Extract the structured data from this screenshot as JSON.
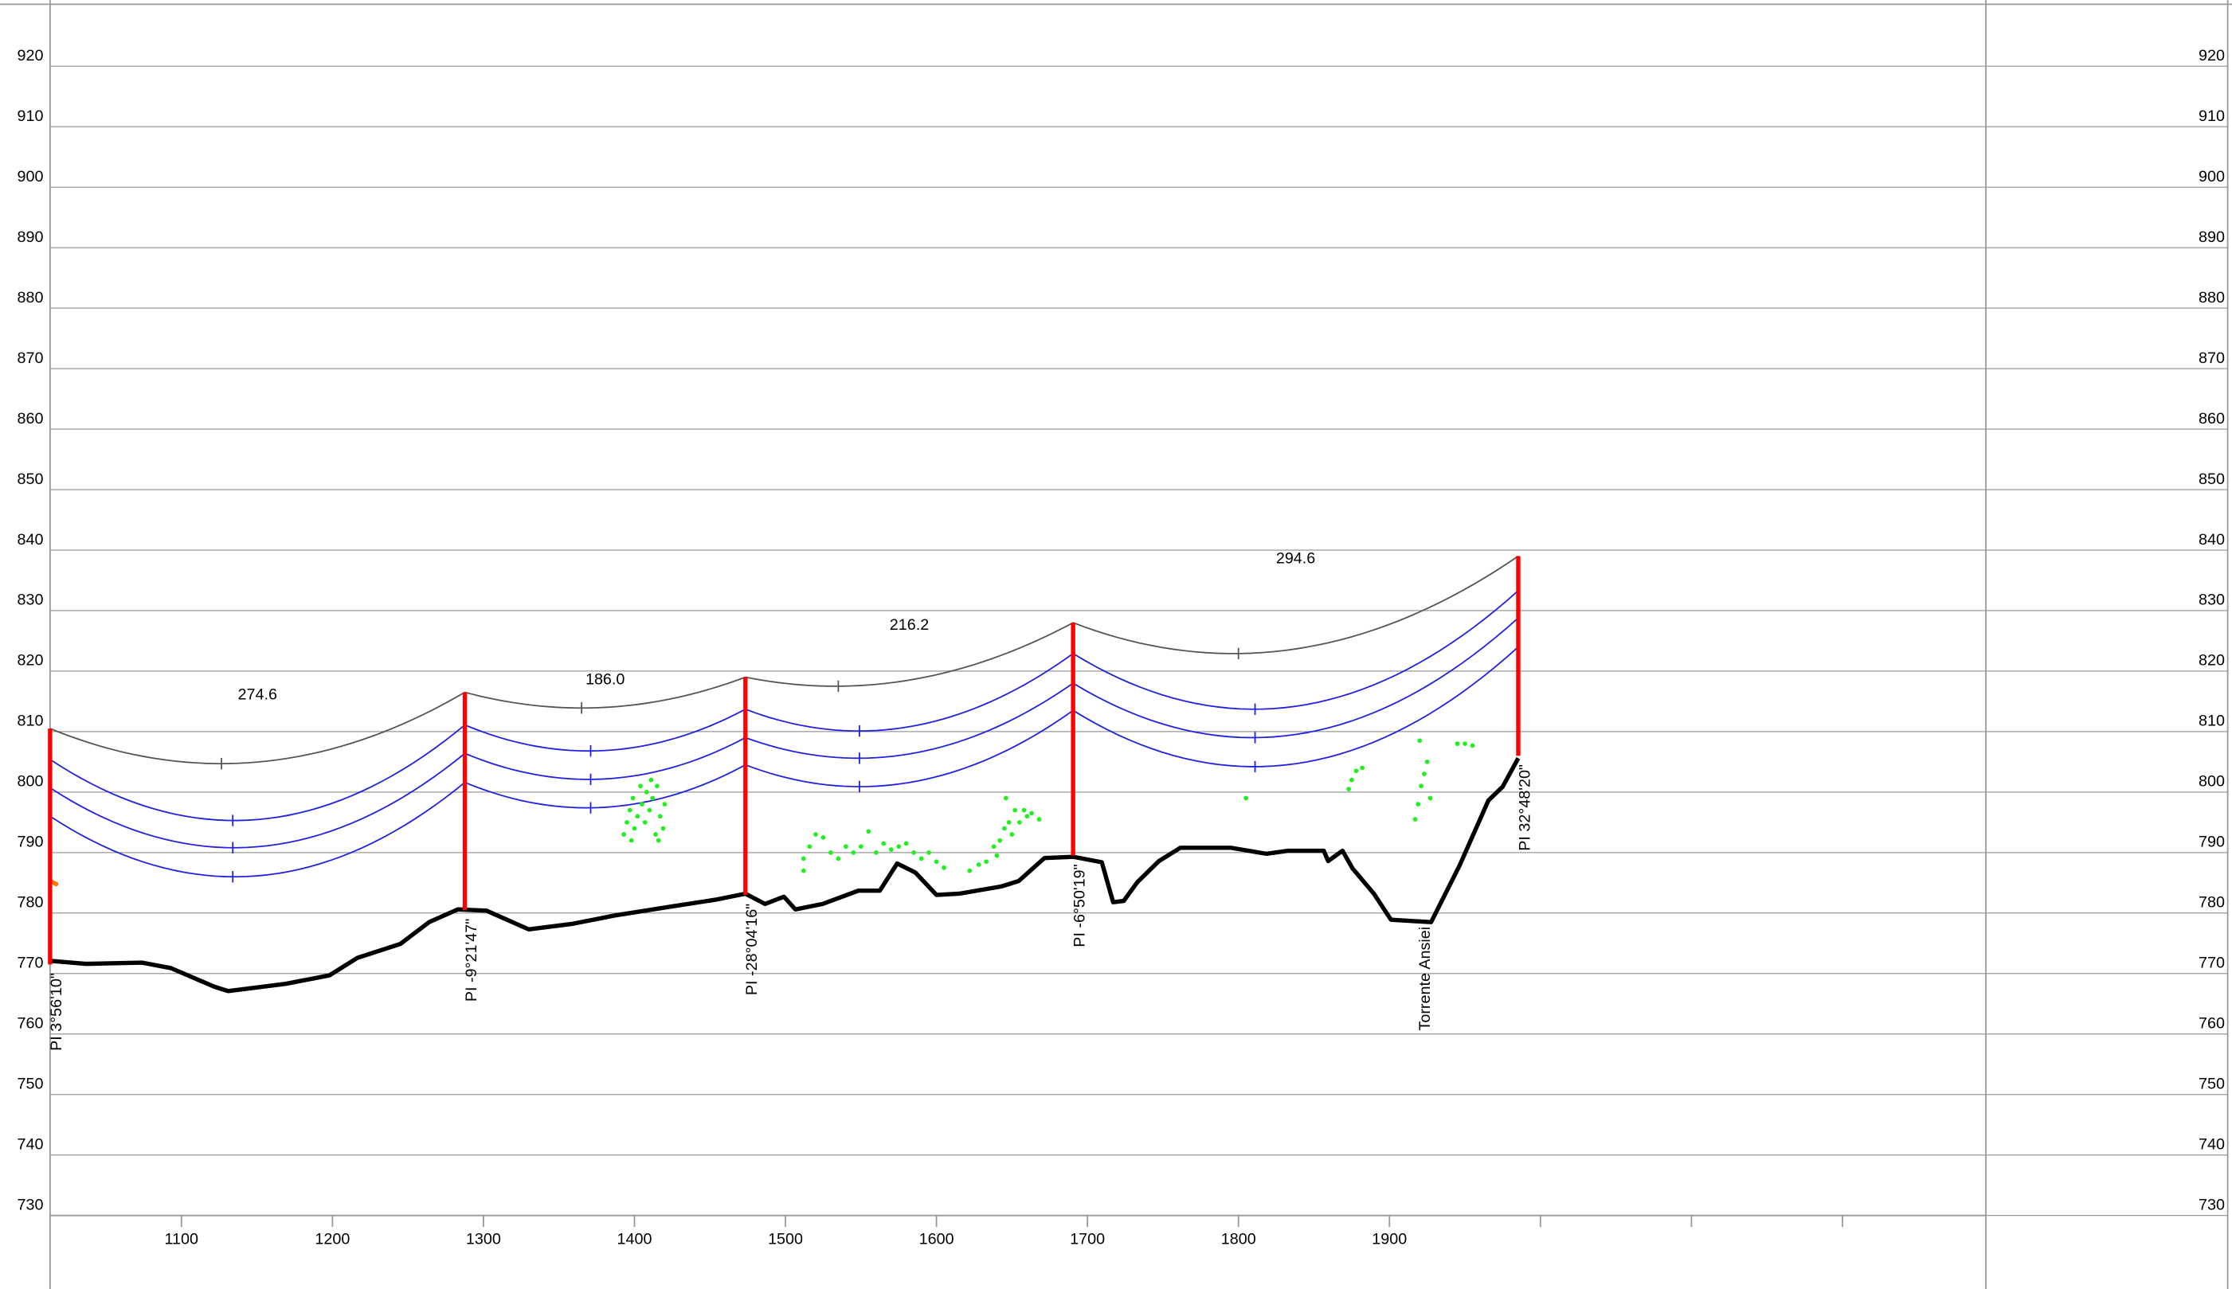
{
  "chart_data": {
    "type": "profile",
    "xlim": [
      1013,
      2295
    ],
    "ylim": [
      730,
      930
    ],
    "xticks": [
      1100,
      1200,
      1300,
      1400,
      1500,
      1600,
      1700,
      1800,
      1900
    ],
    "xminor": [
      2000,
      2100,
      2200
    ],
    "yticks": [
      730,
      740,
      750,
      760,
      770,
      780,
      790,
      800,
      810,
      820,
      830,
      840,
      850,
      860,
      870,
      880,
      890,
      900,
      910,
      920
    ],
    "grid": true,
    "terrain": {
      "color": "#000000",
      "x": [
        1013,
        1036.5,
        1074,
        1093,
        1122,
        1131,
        1169,
        1198,
        1216.6,
        1245,
        1264,
        1283,
        1302,
        1330,
        1358.5,
        1387,
        1425,
        1453.5,
        1473.5,
        1486.5,
        1499,
        1506.6,
        1524.6,
        1548.3,
        1562.5,
        1574,
        1586,
        1600,
        1615,
        1643,
        1654.5,
        1671.6,
        1690.5,
        1709.5,
        1717,
        1724,
        1733,
        1747.4,
        1761.6,
        1794.8,
        1818.5,
        1832.8,
        1856.5,
        1859.4,
        1868.9,
        1875.5,
        1889.7,
        1901,
        1927.6,
        1946.5,
        1965.5,
        1975,
        1985.3
      ],
      "values": [
        772.1,
        771.6,
        771.8,
        770.9,
        767.8,
        767.1,
        768.3,
        769.7,
        772.6,
        774.9,
        778.5,
        780.6,
        780.4,
        777.3,
        778.2,
        779.6,
        781.1,
        782.2,
        783.2,
        781.5,
        782.7,
        780.6,
        781.5,
        783.7,
        783.7,
        788.2,
        786.7,
        783,
        783.2,
        784.4,
        785.3,
        789.1,
        789.3,
        788.4,
        781.8,
        782,
        785.1,
        788.6,
        790.8,
        790.8,
        789.8,
        790.3,
        790.3,
        788.6,
        790.3,
        787.4,
        783.2,
        778.9,
        778.5,
        787.9,
        798.6,
        800.9,
        805.6
      ]
    },
    "poles": {
      "color": "#ff0000",
      "x": [
        1013,
        1287.7,
        1473.5,
        1690.5,
        1985.3
      ],
      "top": [
        810.5,
        816.5,
        819,
        828,
        839
      ],
      "bottom": [
        771.5,
        780.5,
        783,
        789.5,
        806
      ],
      "labels": [
        "PI 3°56'10\"",
        "PI -9°21'47\"",
        "PI -28°04'16\"",
        "PI -6°50'19\"",
        "PI 32°48'20\""
      ]
    },
    "wires": [
      {
        "color": "#555555",
        "values": [
          810.5,
          816.5,
          819,
          828,
          839
        ],
        "low_x": [
          1126.5,
          1365,
          1535,
          1800
        ],
        "low_y": [
          804.7,
          813.9,
          817.5,
          822.9
        ]
      },
      {
        "color": "#2020e0",
        "values": [
          805.4,
          811.1,
          813.7,
          822.9,
          833.3
        ],
        "low_x": [
          1134,
          1371,
          1549,
          1811
        ],
        "low_y": [
          795.3,
          806.8,
          810.1,
          813.7
        ]
      },
      {
        "color": "#2020e0",
        "values": [
          800.7,
          806.4,
          809,
          818,
          828.8
        ],
        "low_x": [
          1134,
          1371,
          1549,
          1811
        ],
        "low_y": [
          790.8,
          802.1,
          805.6,
          809
        ]
      },
      {
        "color": "#2020e0",
        "values": [
          796,
          801.6,
          804.5,
          813.5,
          824
        ],
        "low_x": [
          1134,
          1371,
          1549,
          1811
        ],
        "low_y": [
          786,
          797.4,
          800.9,
          804.2
        ]
      }
    ],
    "spans": [
      {
        "value": 274.6,
        "label": "274.6"
      },
      {
        "value": 186,
        "label": "186.0"
      },
      {
        "value": 216.2,
        "label": "216.2"
      },
      {
        "value": 294.6,
        "label": "294.6"
      }
    ],
    "annotations": [
      {
        "x": 1922,
        "text": "Torrente Ansiei"
      }
    ],
    "points": [
      {
        "color": "#22ee22",
        "x": [
          1393,
          1395,
          1397,
          1399,
          1400,
          1402,
          1404,
          1405,
          1407,
          1408,
          1410,
          1412,
          1414,
          1415,
          1417,
          1419,
          1420,
          1398,
          1411,
          1416,
          1512,
          1516,
          1520,
          1525,
          1530,
          1535,
          1540,
          1545,
          1550,
          1555,
          1560,
          1565,
          1570,
          1575,
          1580,
          1585,
          1590,
          1595,
          1600,
          1605,
          1512,
          1622,
          1628,
          1633,
          1638,
          1642,
          1645,
          1648,
          1650,
          1652,
          1655,
          1658,
          1660,
          1663,
          1668,
          1646,
          1640,
          1805,
          1873,
          1875,
          1878,
          1882,
          1917,
          1919,
          1921,
          1923,
          1925,
          1927,
          1920,
          1945,
          1950,
          1955
        ],
        "values": [
          793,
          795,
          797,
          799,
          794,
          796,
          801,
          798,
          795,
          800,
          797,
          799,
          793,
          801,
          796,
          794,
          798,
          792,
          802,
          792,
          789,
          791,
          793,
          792.5,
          790,
          789,
          791,
          790,
          791,
          793.5,
          790,
          791.5,
          790.5,
          791,
          791.5,
          790,
          789,
          790,
          788.5,
          787.5,
          787,
          787,
          788,
          788.5,
          791,
          792,
          794,
          795,
          793,
          797,
          795,
          797,
          796,
          796.5,
          795.5,
          799,
          789.5,
          799,
          800.5,
          802,
          803.5,
          804,
          795.5,
          798,
          801,
          803,
          805,
          799,
          808.5,
          808,
          808,
          807.7
        ]
      },
      {
        "color": "#ff7700",
        "x": [
          1014,
          1015.5,
          1017
        ],
        "values": [
          785.2,
          785,
          784.8
        ]
      }
    ]
  }
}
